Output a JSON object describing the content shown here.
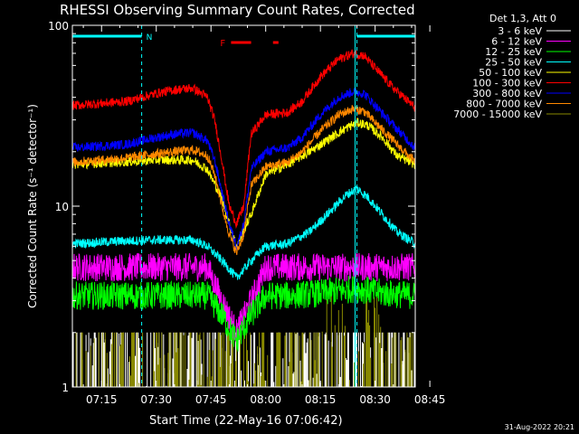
{
  "chart_data": {
    "type": "line",
    "title": "RHESSI Observing Summary Count Rates, Corrected",
    "xlabel": "Start Time (22-May-16 07:06:42)",
    "ylabel": "Corrected Count Rate (s⁻¹ detector⁻¹)",
    "y_scale": "log",
    "ylim": [
      1,
      100
    ],
    "y_ticks": [
      {
        "value": 1,
        "label": "1"
      },
      {
        "value": 10,
        "label": "10"
      },
      {
        "value": 100,
        "label": "100"
      }
    ],
    "xlim_minutes": [
      7.0,
      101.0
    ],
    "x_ticks": [
      {
        "minute": 15,
        "label": "07:15"
      },
      {
        "minute": 30,
        "label": "07:30"
      },
      {
        "minute": 45,
        "label": "07:45"
      },
      {
        "minute": 60,
        "label": "08:00"
      },
      {
        "minute": 75,
        "label": "08:15"
      },
      {
        "minute": 90,
        "label": "08:30"
      },
      {
        "minute": 105,
        "label": "08:45"
      }
    ],
    "grid": false,
    "legend_position": "right",
    "legend_title": "Det 1,3, Att 0",
    "series": [
      {
        "name": "3 - 6 keV",
        "color": "#ffffff",
        "style": "sparse"
      },
      {
        "name": "6 - 12 keV",
        "color": "#ff00ff",
        "x": [
          7,
          20,
          30,
          44,
          48,
          52,
          56,
          60,
          66,
          75,
          85,
          92,
          101
        ],
        "y": [
          4.6,
          4.6,
          4.6,
          4.6,
          3.0,
          2.0,
          3.0,
          4.6,
          4.6,
          4.6,
          4.6,
          4.6,
          4.6
        ]
      },
      {
        "name": "12 - 25 keV",
        "color": "#00ff00",
        "x": [
          7,
          20,
          30,
          44,
          48,
          52,
          56,
          60,
          66,
          75,
          85,
          92,
          101
        ],
        "y": [
          3.2,
          3.2,
          3.2,
          3.2,
          2.5,
          1.8,
          2.5,
          3.2,
          3.2,
          3.3,
          3.5,
          3.3,
          3.2
        ]
      },
      {
        "name": "25 - 50 keV",
        "color": "#00ffff",
        "x": [
          7,
          20,
          30,
          40,
          44,
          48,
          50,
          52,
          56,
          60,
          66,
          72,
          78,
          82,
          85,
          88,
          92,
          96,
          101
        ],
        "y": [
          6.2,
          6.4,
          6.5,
          6.5,
          6.0,
          5.0,
          4.5,
          4.0,
          5.0,
          6.0,
          6.2,
          7.2,
          9.5,
          11.5,
          12.5,
          11.2,
          9.0,
          7.2,
          6.2
        ]
      },
      {
        "name": "50 - 100 keV",
        "color": "#ffff00",
        "x": [
          7,
          20,
          30,
          40,
          44,
          48,
          50,
          52,
          56,
          60,
          66,
          72,
          78,
          82,
          85,
          88,
          92,
          96,
          101
        ],
        "y": [
          17,
          17.5,
          18,
          18,
          16,
          11,
          8,
          6,
          9,
          15,
          17,
          20,
          24,
          27,
          29,
          28,
          24,
          19,
          17
        ]
      },
      {
        "name": "100 - 300 keV",
        "color": "#ff0000",
        "x": [
          7,
          15,
          22,
          30,
          35,
          40,
          44,
          46,
          48,
          50,
          52,
          54,
          56,
          60,
          66,
          70,
          75,
          80,
          84,
          87,
          90,
          95,
          101
        ],
        "y": [
          36,
          37,
          38,
          42,
          44,
          45,
          40,
          30,
          18,
          10,
          8,
          10,
          25,
          32,
          33,
          38,
          52,
          65,
          70,
          68,
          58,
          45,
          35
        ]
      },
      {
        "name": "300 - 800 keV",
        "color": "#0000ff",
        "x": [
          7,
          15,
          22,
          30,
          35,
          40,
          44,
          46,
          48,
          50,
          52,
          54,
          56,
          60,
          66,
          70,
          75,
          80,
          84,
          87,
          90,
          95,
          101
        ],
        "y": [
          21,
          21.5,
          22,
          24,
          25,
          25.5,
          23,
          18,
          12,
          8,
          6,
          8,
          16,
          20,
          21,
          24,
          32,
          40,
          43,
          42,
          36,
          28,
          21
        ]
      },
      {
        "name": "800 - 7000 keV",
        "color": "#ff8800",
        "x": [
          7,
          15,
          22,
          30,
          35,
          40,
          44,
          46,
          48,
          50,
          52,
          54,
          56,
          60,
          66,
          70,
          75,
          80,
          84,
          87,
          90,
          95,
          101
        ],
        "y": [
          17.5,
          18,
          18.5,
          19.5,
          20,
          20.5,
          19,
          15,
          10,
          7,
          5.5,
          7,
          13,
          16.5,
          17.5,
          20,
          26,
          32,
          34.5,
          33.5,
          29,
          23,
          17.5
        ]
      },
      {
        "name": "7000 - 15000 keV",
        "color": "#888800",
        "style": "sparse"
      }
    ],
    "annotations": [
      {
        "text": "N",
        "color": "#00ffff"
      },
      {
        "text": "F",
        "color": "#ff0000"
      }
    ],
    "markers": {
      "night_bars_minutes": [
        [
          7,
          26
        ],
        [
          85,
          101
        ]
      ],
      "night_edges_minutes": [
        26,
        85,
        101
      ],
      "saa_line_minute": 84.5,
      "flare_bars_minutes": [
        [
          50.5,
          56
        ],
        [
          62,
          63.5
        ]
      ]
    },
    "footer_date": "31-Aug-2022 20:21"
  }
}
